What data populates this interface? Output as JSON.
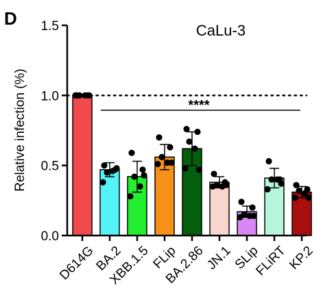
{
  "chart_data": {
    "type": "bar",
    "panel_label": "D",
    "title": "CaLu-3",
    "xlabel": "",
    "ylabel": "Relative infection (%)",
    "ylim": [
      0,
      1.5
    ],
    "yticks": [
      "0.0",
      "0.5",
      "1.0",
      "1.5"
    ],
    "reference_line": 1.0,
    "significance": "****",
    "categories": [
      "D614G",
      "BA.2",
      "XBB.1.5",
      "FLip",
      "BA.2.86",
      "JN.1",
      "SLip",
      "FLiRT",
      "KP.2"
    ],
    "values": [
      1.0,
      0.47,
      0.42,
      0.56,
      0.62,
      0.38,
      0.17,
      0.41,
      0.31
    ],
    "errors": [
      0.0,
      0.05,
      0.11,
      0.09,
      0.12,
      0.04,
      0.04,
      0.07,
      0.04
    ],
    "points": [
      [
        1.0,
        1.0,
        1.0,
        1.0,
        1.0,
        1.0
      ],
      [
        0.5,
        0.47,
        0.45,
        0.46,
        0.38,
        0.48
      ],
      [
        0.59,
        0.47,
        0.42,
        0.35,
        0.28,
        0.43
      ],
      [
        0.7,
        0.63,
        0.56,
        0.52,
        0.51,
        0.52
      ],
      [
        0.76,
        0.74,
        0.67,
        0.62,
        0.48,
        0.47
      ],
      [
        0.44,
        0.38,
        0.36,
        0.35,
        0.35,
        0.36
      ],
      [
        0.24,
        0.2,
        0.15,
        0.14,
        0.13,
        0.14
      ],
      [
        0.53,
        0.4,
        0.4,
        0.4,
        0.33,
        0.37
      ],
      [
        0.36,
        0.33,
        0.32,
        0.3,
        0.27,
        0.27
      ]
    ],
    "colors": [
      "#f24a4c",
      "#54f3f7",
      "#23ee2f",
      "#f79018",
      "#035f0b",
      "#f8d6cd",
      "#d888f5",
      "#b6f7dc",
      "#a90e0e"
    ]
  }
}
